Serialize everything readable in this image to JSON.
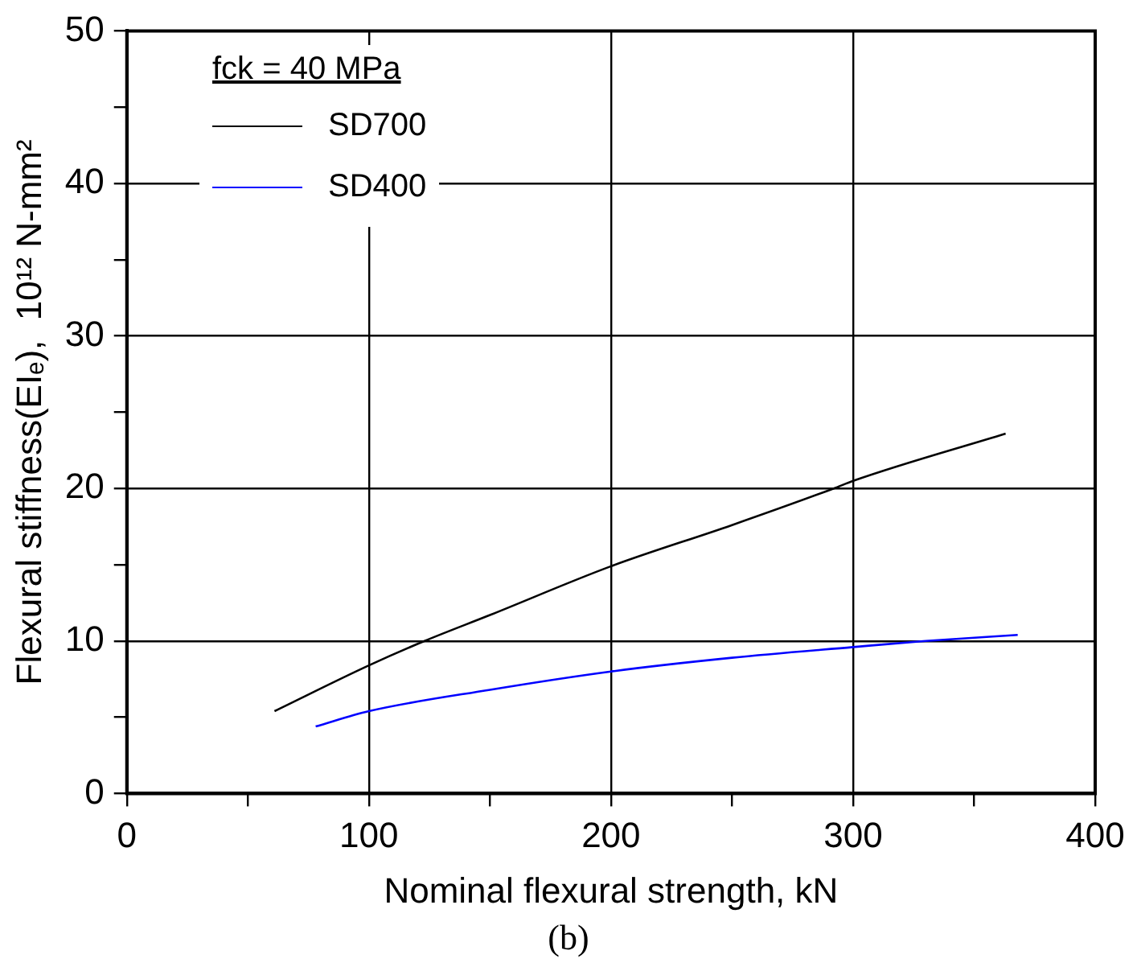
{
  "chart_data": {
    "type": "line",
    "xlabel": "Nominal flexural strength, kN",
    "ylabel": "Flexural stiffness(EIₑ),  10¹² N-mm²",
    "legend_title": "fck = 40 MPa",
    "legend": "top left",
    "grid": true,
    "marker": "none",
    "line_style": "solid",
    "xlim": [
      0,
      400
    ],
    "xticks": [
      0,
      {
        "value": 50,
        "label": null
      },
      100,
      {
        "value": 150,
        "label": null
      },
      200,
      {
        "value": 250,
        "label": null
      },
      300,
      {
        "value": 350,
        "label": null
      },
      400
    ],
    "ylim": [
      0,
      50
    ],
    "yticks": [
      0,
      {
        "value": 5,
        "label": null
      },
      10,
      {
        "value": 15,
        "label": null
      },
      20,
      {
        "value": 25,
        "label": null
      },
      30,
      {
        "value": 35,
        "label": null
      },
      40,
      {
        "value": 45,
        "label": null
      },
      50
    ],
    "series": [
      {
        "name": "SD700",
        "color": "#000000",
        "x": [
          61,
          100,
          123,
          150,
          200,
          250,
          292,
          300,
          363
        ],
        "values": [
          5.4,
          8.4,
          10,
          11.7,
          14.9,
          17.6,
          20,
          20.5,
          23.6
        ]
      },
      {
        "name": "SD400",
        "color": "#0000ff",
        "x": [
          78,
          100,
          150,
          200,
          250,
          300,
          330,
          368
        ],
        "values": [
          4.4,
          5.4,
          6.8,
          8.0,
          8.9,
          9.6,
          10,
          10.4
        ]
      }
    ],
    "annotations": [
      "(b)"
    ]
  }
}
